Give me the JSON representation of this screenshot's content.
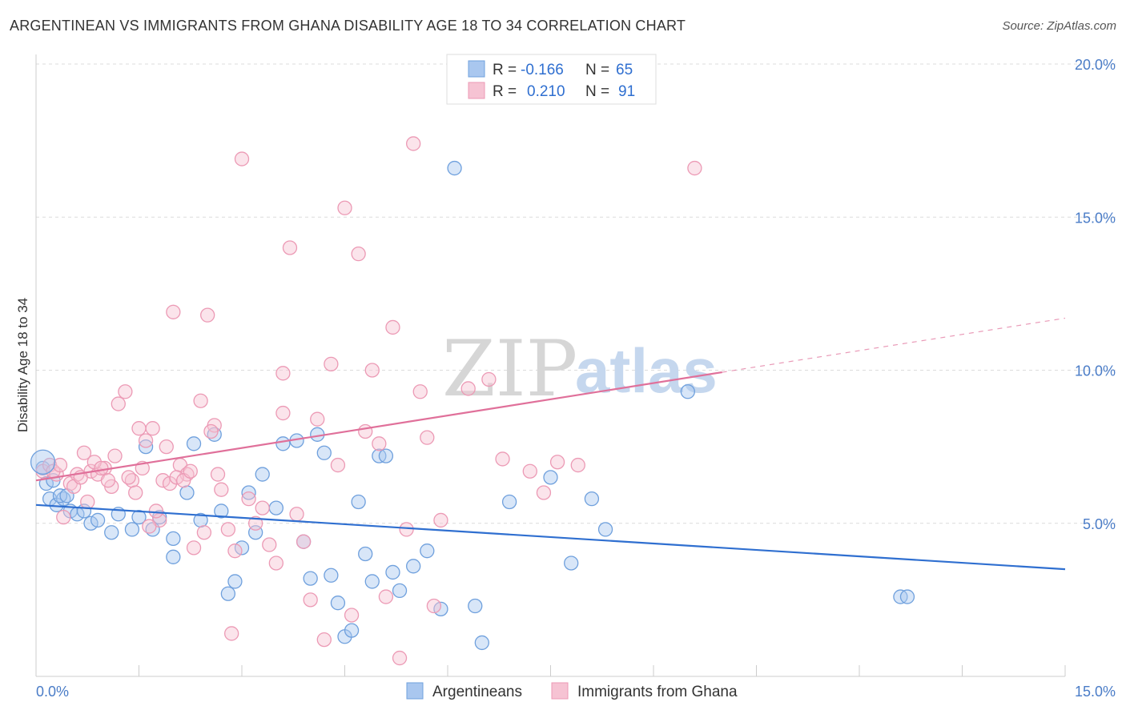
{
  "title": "ARGENTINEAN VS IMMIGRANTS FROM GHANA DISABILITY AGE 18 TO 34 CORRELATION CHART",
  "source": "Source: ZipAtlas.com",
  "watermark": {
    "zip": "ZIP",
    "atlas": "atlas"
  },
  "chart_data": {
    "type": "scatter",
    "ylabel": "Disability Age 18 to 34",
    "xlim": [
      0,
      15
    ],
    "ylim": [
      0,
      20
    ],
    "x_ticks": [
      {
        "value": 0,
        "label": "0.0%"
      },
      {
        "value": 15,
        "label": "15.0%"
      }
    ],
    "y_ticks": [
      {
        "value": 5,
        "label": "5.0%"
      },
      {
        "value": 10,
        "label": "10.0%"
      },
      {
        "value": 15,
        "label": "15.0%"
      },
      {
        "value": 20,
        "label": "20.0%"
      }
    ],
    "grid": true,
    "legend_top": [
      {
        "r_label": "R =",
        "r_value": "-0.166",
        "n_label": "N =",
        "n_value": "65"
      },
      {
        "r_label": "R =",
        "r_value": "0.210",
        "n_label": "N =",
        "n_value": "91"
      }
    ],
    "series": [
      {
        "name": "Argentineans",
        "color": "#6fa0dd",
        "fill": "#a9c7ef",
        "line_color": "#2f6fd0",
        "trend": {
          "x0": 0,
          "y0": 5.6,
          "x1": 15,
          "y1": 3.5,
          "solid_until": 15
        },
        "points": [
          [
            0.1,
            6.8
          ],
          [
            0.2,
            5.8
          ],
          [
            0.3,
            5.6
          ],
          [
            0.4,
            5.8
          ],
          [
            0.5,
            5.4
          ],
          [
            0.6,
            5.3
          ],
          [
            0.7,
            5.4
          ],
          [
            0.8,
            5.0
          ],
          [
            0.9,
            5.1
          ],
          [
            1.1,
            4.7
          ],
          [
            1.2,
            5.3
          ],
          [
            1.4,
            4.8
          ],
          [
            1.5,
            5.2
          ],
          [
            1.6,
            7.5
          ],
          [
            1.7,
            4.8
          ],
          [
            1.8,
            5.2
          ],
          [
            2.0,
            4.5
          ],
          [
            2.0,
            3.9
          ],
          [
            2.2,
            6.0
          ],
          [
            2.3,
            7.6
          ],
          [
            2.4,
            5.1
          ],
          [
            2.6,
            7.9
          ],
          [
            2.7,
            5.4
          ],
          [
            2.8,
            2.7
          ],
          [
            2.9,
            3.1
          ],
          [
            3.0,
            4.2
          ],
          [
            3.1,
            6.0
          ],
          [
            3.2,
            4.7
          ],
          [
            3.3,
            6.6
          ],
          [
            3.5,
            5.5
          ],
          [
            3.6,
            7.6
          ],
          [
            3.8,
            7.7
          ],
          [
            3.9,
            4.4
          ],
          [
            4.0,
            3.2
          ],
          [
            4.1,
            7.9
          ],
          [
            4.2,
            7.3
          ],
          [
            4.3,
            3.3
          ],
          [
            4.4,
            2.4
          ],
          [
            4.5,
            1.3
          ],
          [
            4.6,
            1.5
          ],
          [
            4.7,
            5.7
          ],
          [
            4.8,
            4.0
          ],
          [
            4.9,
            3.1
          ],
          [
            5.0,
            7.2
          ],
          [
            5.1,
            7.2
          ],
          [
            5.2,
            3.4
          ],
          [
            5.3,
            2.8
          ],
          [
            5.5,
            3.6
          ],
          [
            5.7,
            4.1
          ],
          [
            5.9,
            2.2
          ],
          [
            6.1,
            16.6
          ],
          [
            6.4,
            2.3
          ],
          [
            6.5,
            1.1
          ],
          [
            6.9,
            5.7
          ],
          [
            7.5,
            6.5
          ],
          [
            7.8,
            3.7
          ],
          [
            8.1,
            5.8
          ],
          [
            8.3,
            4.8
          ],
          [
            9.5,
            9.3
          ],
          [
            12.6,
            2.6
          ],
          [
            12.7,
            2.6
          ],
          [
            0.15,
            6.3
          ],
          [
            0.25,
            6.4
          ],
          [
            0.35,
            5.9
          ],
          [
            0.45,
            5.9
          ]
        ]
      },
      {
        "name": "Immigrants from Ghana",
        "color": "#ec9ab5",
        "fill": "#f6c3d3",
        "line_color": "#e0709a",
        "trend": {
          "x0": 0,
          "y0": 6.4,
          "x1": 15,
          "y1": 11.7,
          "solid_until": 10.0
        },
        "points": [
          [
            0.1,
            6.7
          ],
          [
            0.2,
            6.9
          ],
          [
            0.3,
            6.6
          ],
          [
            0.4,
            5.2
          ],
          [
            0.5,
            6.3
          ],
          [
            0.6,
            6.6
          ],
          [
            0.7,
            7.3
          ],
          [
            0.8,
            6.7
          ],
          [
            0.9,
            6.6
          ],
          [
            1.0,
            6.8
          ],
          [
            1.1,
            6.2
          ],
          [
            1.2,
            8.9
          ],
          [
            1.3,
            9.3
          ],
          [
            1.4,
            6.4
          ],
          [
            1.5,
            8.1
          ],
          [
            1.6,
            7.7
          ],
          [
            1.7,
            8.1
          ],
          [
            1.8,
            5.1
          ],
          [
            1.9,
            7.5
          ],
          [
            2.0,
            11.9
          ],
          [
            2.1,
            6.9
          ],
          [
            2.2,
            6.6
          ],
          [
            2.3,
            4.2
          ],
          [
            2.4,
            9.0
          ],
          [
            2.5,
            11.8
          ],
          [
            2.6,
            8.2
          ],
          [
            2.7,
            6.1
          ],
          [
            2.8,
            4.8
          ],
          [
            2.9,
            4.1
          ],
          [
            3.0,
            16.9
          ],
          [
            3.1,
            5.8
          ],
          [
            3.2,
            5.0
          ],
          [
            3.3,
            5.5
          ],
          [
            3.4,
            4.3
          ],
          [
            3.5,
            3.7
          ],
          [
            3.6,
            9.9
          ],
          [
            3.6,
            8.6
          ],
          [
            3.7,
            14.0
          ],
          [
            3.8,
            5.3
          ],
          [
            3.9,
            4.4
          ],
          [
            4.0,
            2.5
          ],
          [
            4.1,
            8.4
          ],
          [
            4.2,
            1.2
          ],
          [
            4.3,
            10.2
          ],
          [
            4.4,
            6.9
          ],
          [
            4.5,
            15.3
          ],
          [
            4.6,
            2.0
          ],
          [
            4.7,
            13.8
          ],
          [
            4.8,
            8.0
          ],
          [
            4.9,
            10.0
          ],
          [
            5.0,
            7.6
          ],
          [
            5.1,
            2.6
          ],
          [
            5.2,
            11.4
          ],
          [
            5.3,
            0.6
          ],
          [
            5.4,
            4.8
          ],
          [
            5.5,
            17.4
          ],
          [
            5.6,
            9.3
          ],
          [
            5.7,
            7.8
          ],
          [
            5.8,
            2.3
          ],
          [
            5.9,
            5.1
          ],
          [
            6.3,
            9.4
          ],
          [
            6.6,
            9.7
          ],
          [
            6.8,
            7.1
          ],
          [
            7.2,
            6.7
          ],
          [
            7.4,
            6.0
          ],
          [
            7.6,
            7.0
          ],
          [
            7.9,
            6.9
          ],
          [
            9.6,
            16.6
          ],
          [
            0.25,
            6.7
          ],
          [
            0.35,
            6.9
          ],
          [
            0.55,
            6.2
          ],
          [
            0.65,
            6.5
          ],
          [
            0.75,
            5.7
          ],
          [
            0.85,
            7.0
          ],
          [
            0.95,
            6.8
          ],
          [
            1.05,
            6.4
          ],
          [
            1.15,
            7.2
          ],
          [
            1.35,
            6.5
          ],
          [
            1.45,
            6.0
          ],
          [
            1.55,
            6.8
          ],
          [
            1.65,
            4.9
          ],
          [
            1.75,
            5.4
          ],
          [
            1.85,
            6.4
          ],
          [
            1.95,
            6.3
          ],
          [
            2.05,
            6.5
          ],
          [
            2.15,
            6.4
          ],
          [
            2.25,
            6.7
          ],
          [
            2.45,
            4.7
          ],
          [
            2.55,
            8.0
          ],
          [
            2.65,
            6.6
          ],
          [
            2.85,
            1.4
          ]
        ]
      }
    ]
  }
}
